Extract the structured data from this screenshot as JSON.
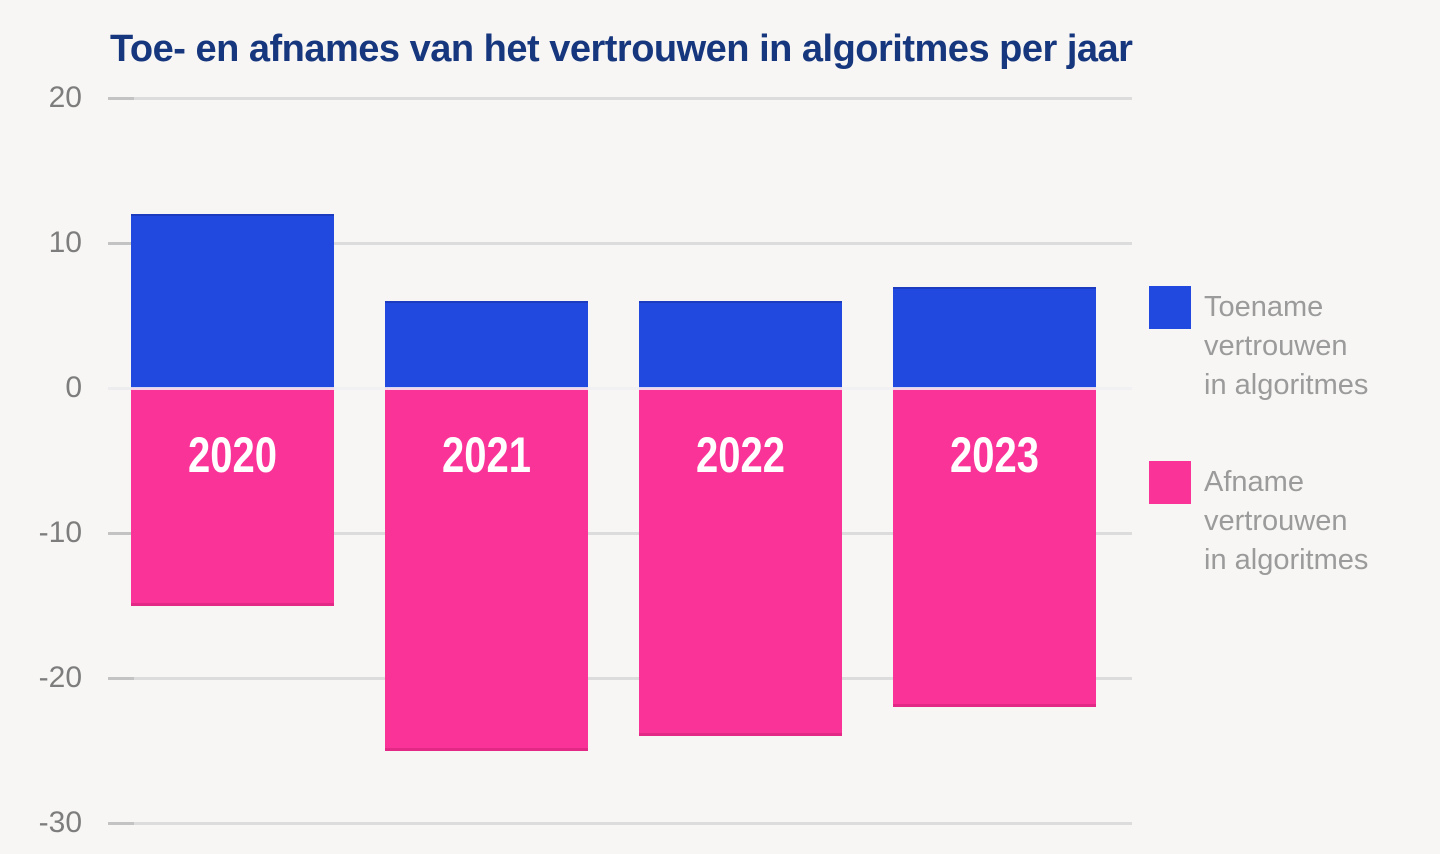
{
  "chart_data": {
    "type": "bar",
    "stacked": true,
    "title": "Toe- en afnames van het vertrouwen in algoritmes per jaar",
    "xlabel": "",
    "ylabel": "",
    "categories": [
      "2020",
      "2021",
      "2022",
      "2023"
    ],
    "series": [
      {
        "name": "Toename vertrouwen in algoritmes",
        "color": "#2249df",
        "values": [
          12,
          6,
          6,
          7
        ]
      },
      {
        "name": "Afname vertrouwen in algoritmes",
        "color": "#fa3398",
        "values": [
          -15,
          -25,
          -24,
          -22
        ]
      }
    ],
    "ylim": [
      -30,
      20
    ],
    "yticks": [
      20,
      10,
      0,
      -10,
      -20,
      -30
    ],
    "grid": true,
    "legend_position": "right"
  },
  "legend": {
    "items": [
      {
        "label_lines": [
          "Toename",
          "vertrouwen",
          "in algoritmes"
        ],
        "color": "#2249df"
      },
      {
        "label_lines": [
          "Afname",
          "vertrouwen",
          "in algoritmes"
        ],
        "color": "#fa3398"
      }
    ]
  },
  "colors": {
    "background": "#f7f6f4",
    "title": "#16367d",
    "gridline": "#dcdcdc",
    "tick_label": "#7d7d7d",
    "legend_text": "#9b9b9b",
    "bar_label": "#ffffff"
  }
}
